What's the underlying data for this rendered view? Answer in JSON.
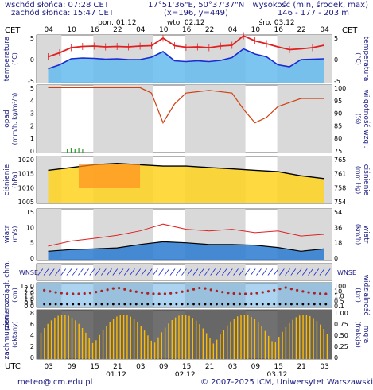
{
  "header": {
    "sunrise": "wschód słońca: 07:28 CET",
    "sunset": "zachód słońca: 15:47 CET",
    "coords": "17°51'36\"E, 50°37'37\"N",
    "grid": "(x=196, y=449)",
    "elev_label": "wysokość (min, środek, max)",
    "elev_values": "146 - 177 - 203 m"
  },
  "timeline": {
    "tz_left": "CET",
    "tz_right": "CET",
    "tz_bottom": "UTC",
    "top_hours": [
      "04",
      "10",
      "16",
      "22",
      "04",
      "10",
      "16",
      "22",
      "04",
      "10",
      "16",
      "22",
      "04"
    ],
    "top_days": [
      "pon. 01.12",
      "wto. 02.12",
      "śro. 03.12"
    ],
    "bottom_hours": [
      "03",
      "09",
      "15",
      "21",
      "03",
      "09",
      "15",
      "21",
      "03",
      "09",
      "15",
      "21",
      "03"
    ],
    "bottom_days": [
      "01.12",
      "02.12",
      "03.12"
    ]
  },
  "panels": {
    "temperature": {
      "left_label": "temperatura",
      "left_unit": "(°C)",
      "right_label": "temperatura",
      "right_unit": "(°C)",
      "ticks": [
        "5",
        "0",
        "-5"
      ]
    },
    "precip": {
      "left_label": "opad",
      "left_unit": "(mm/h, kg/m²/h)",
      "right_label": "wilgotność wzgl.",
      "right_unit": "(%)",
      "left_ticks": [
        "5",
        "4",
        "3",
        "2",
        "1",
        "0"
      ],
      "right_ticks": [
        "100",
        "95",
        "90",
        "85",
        "80",
        "75"
      ]
    },
    "pressure": {
      "left_label": "ciśnienie",
      "left_unit": "(hPa)",
      "right_label": "ciśnienie",
      "right_unit": "(mm Hg)",
      "left_ticks": [
        "1020",
        "1015",
        "1010",
        "1005"
      ],
      "right_ticks": [
        "765",
        "761",
        "758",
        "754"
      ]
    },
    "wind": {
      "left_label": "wiatr",
      "left_unit": "(m/s)",
      "right_label": "wiatr",
      "right_unit": "(km/h)",
      "left_ticks": [
        "15",
        "10",
        "5",
        "0"
      ],
      "right_ticks": [
        "54",
        "36",
        "18",
        "0"
      ]
    },
    "winddir": {
      "label_left": "WNSE",
      "label_right": "WNSE"
    },
    "visibility": {
      "left_label": "pion. rozciągł. chm.",
      "left_unit": "(km)",
      "right_label": "widzialność",
      "right_unit": "(km)",
      "left_ticks": [
        "15.0",
        "7.5",
        "2.0",
        "1.5",
        "1.0",
        "0.5",
        "0.0"
      ],
      "right_ticks": [
        "100",
        "10",
        "1.0",
        "0.5",
        "0.1"
      ]
    },
    "clouds": {
      "left_label": "zachmurzenie",
      "left_unit": "(oktany)",
      "right_label": "mgła",
      "right_unit": "(frakcja)",
      "left_ticks": [
        "8",
        "6",
        "4",
        "2",
        "0"
      ],
      "right_ticks": [
        "1.00",
        "0.75",
        "0.50",
        "0.25",
        "0"
      ]
    }
  },
  "footer": {
    "email": "meteo@icm.edu.pl",
    "copyright": "© 2007-2025 ICM, Uniwersytet Warszawski"
  },
  "colors": {
    "day_bg": "#ffffff",
    "night_bg": "#d9d9d9",
    "temp_line": "#e02020",
    "dew_line": "#1a2ad0",
    "temp_fill": "#66bbee",
    "rh_line": "#d04010",
    "precip": "#2a9a2a",
    "pressure_fill_low": "#ffd21e",
    "pressure_fill_high": "#ff9020",
    "wind_line": "#000000",
    "gust_line": "#dd2222",
    "wind_fill": "#2a7ad0",
    "vis_sky": "#5aa8e0",
    "cloud_dark": "#404040",
    "cloud_yellow": "#ffbb00",
    "text": "#1a1a80"
  },
  "chart_data": [
    {
      "type": "line",
      "title": "",
      "ylabel": "temperatura (°C)",
      "x_hours_cet": [
        4,
        7,
        10,
        13,
        16,
        19,
        22,
        25,
        28,
        31,
        34,
        37,
        40,
        43,
        46,
        49,
        52,
        55,
        58,
        61,
        64,
        67,
        70,
        73,
        76
      ],
      "series": [
        {
          "values": [
            1.5,
            2.5,
            3.8,
            4.1,
            4.2,
            4.0,
            4.1,
            4.0,
            4.2,
            4.3,
            6.2,
            4.3,
            3.9,
            4.0,
            3.8,
            4.2,
            4.4,
            6.8,
            5.5,
            4.8,
            4.0,
            3.3,
            3.5,
            3.8,
            4.4
          ]
        },
        {
          "values": [
            -1.5,
            -0.5,
            1.0,
            1.2,
            1.1,
            0.9,
            1.0,
            0.8,
            0.8,
            1.4,
            2.8,
            0.5,
            0.3,
            0.5,
            0.3,
            0.6,
            1.3,
            3.5,
            2.2,
            1.5,
            -0.5,
            -1.0,
            0.8,
            0.9,
            1.0
          ]
        }
      ],
      "ylim": [
        -5,
        7
      ]
    },
    {
      "type": "line",
      "ylabel": "wilgotność wzgl. (%)",
      "x_hours_cet": [
        4,
        10,
        16,
        22,
        28,
        31,
        34,
        37,
        40,
        46,
        52,
        55,
        58,
        61,
        64,
        70,
        76
      ],
      "series": [
        {
          "values": [
            99,
            99,
            99,
            99,
            99,
            97,
            86,
            93,
            97,
            98,
            97,
            91,
            86,
            88,
            92,
            95,
            95
          ]
        }
      ],
      "ylim": [
        75,
        100
      ]
    },
    {
      "type": "area",
      "ylabel": "ciśnienie (hPa)",
      "x_hours_cet": [
        4,
        10,
        16,
        22,
        28,
        34,
        40,
        46,
        52,
        58,
        64,
        70,
        76
      ],
      "series": [
        {
          "values": [
            1017,
            1018,
            1019,
            1019.5,
            1019,
            1018.5,
            1018.5,
            1018,
            1017.5,
            1017,
            1016.5,
            1015,
            1014
          ]
        }
      ],
      "ylim": [
        1005,
        1022
      ]
    },
    {
      "type": "line",
      "ylabel": "wiatr (m/s)",
      "x_hours_cet": [
        4,
        10,
        16,
        22,
        28,
        34,
        40,
        46,
        52,
        58,
        64,
        70,
        76
      ],
      "series": [
        {
          "values": [
            2.5,
            3.0,
            3.2,
            3.5,
            4.5,
            5.3,
            5.0,
            4.5,
            4.5,
            4.3,
            3.6,
            2.5,
            3.2
          ]
        },
        {
          "values": [
            4.0,
            5.5,
            6.3,
            7.2,
            8.5,
            10.5,
            9.0,
            8.5,
            9.0,
            8.0,
            8.5,
            7.0,
            7.5
          ]
        }
      ],
      "ylim": [
        0,
        15
      ]
    }
  ]
}
